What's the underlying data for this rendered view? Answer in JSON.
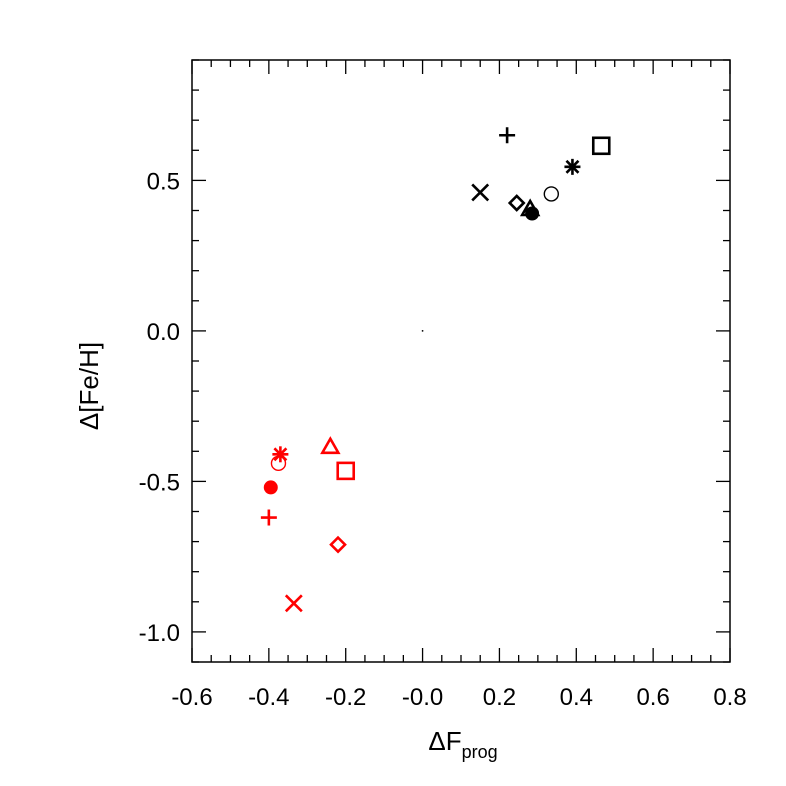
{
  "chart_data": {
    "type": "scatter",
    "xlabel": "ΔF",
    "xlabel_subscript": "prog",
    "ylabel": "Δ[Fe/H]",
    "xlim": [
      -0.6,
      0.8
    ],
    "ylim": [
      -1.1,
      0.9
    ],
    "x_ticks": [
      -0.6,
      -0.4,
      -0.2,
      0.0,
      0.2,
      0.4,
      0.6,
      0.8
    ],
    "x_tick_labels": [
      "-0.6",
      "-0.4",
      "-0.2",
      "-0.0",
      "0.2",
      "0.4",
      "0.6",
      "0.8"
    ],
    "y_ticks": [
      -1.0,
      -0.5,
      0.0,
      0.5
    ],
    "y_tick_labels": [
      "-1.0",
      "-0.5",
      "0.0",
      "0.5"
    ],
    "grid": false,
    "series": [
      {
        "color": "#000000",
        "points": [
          {
            "x": 0.22,
            "y": 0.65,
            "marker": "plus"
          },
          {
            "x": 0.465,
            "y": 0.615,
            "marker": "square"
          },
          {
            "x": 0.39,
            "y": 0.545,
            "marker": "asterisk"
          },
          {
            "x": 0.15,
            "y": 0.46,
            "marker": "x"
          },
          {
            "x": 0.335,
            "y": 0.455,
            "marker": "circle-open"
          },
          {
            "x": 0.245,
            "y": 0.425,
            "marker": "diamond"
          },
          {
            "x": 0.28,
            "y": 0.405,
            "marker": "triangle"
          },
          {
            "x": 0.285,
            "y": 0.39,
            "marker": "circle-filled"
          },
          {
            "x": 0.0,
            "y": 0.0,
            "marker": "dot"
          }
        ]
      },
      {
        "color": "#ff0000",
        "points": [
          {
            "x": -0.37,
            "y": -0.41,
            "marker": "asterisk"
          },
          {
            "x": -0.375,
            "y": -0.44,
            "marker": "circle-open"
          },
          {
            "x": -0.24,
            "y": -0.385,
            "marker": "triangle"
          },
          {
            "x": -0.2,
            "y": -0.465,
            "marker": "square"
          },
          {
            "x": -0.395,
            "y": -0.52,
            "marker": "circle-filled"
          },
          {
            "x": -0.4,
            "y": -0.62,
            "marker": "plus"
          },
          {
            "x": -0.22,
            "y": -0.71,
            "marker": "diamond"
          },
          {
            "x": -0.335,
            "y": -0.905,
            "marker": "x"
          }
        ]
      }
    ]
  }
}
